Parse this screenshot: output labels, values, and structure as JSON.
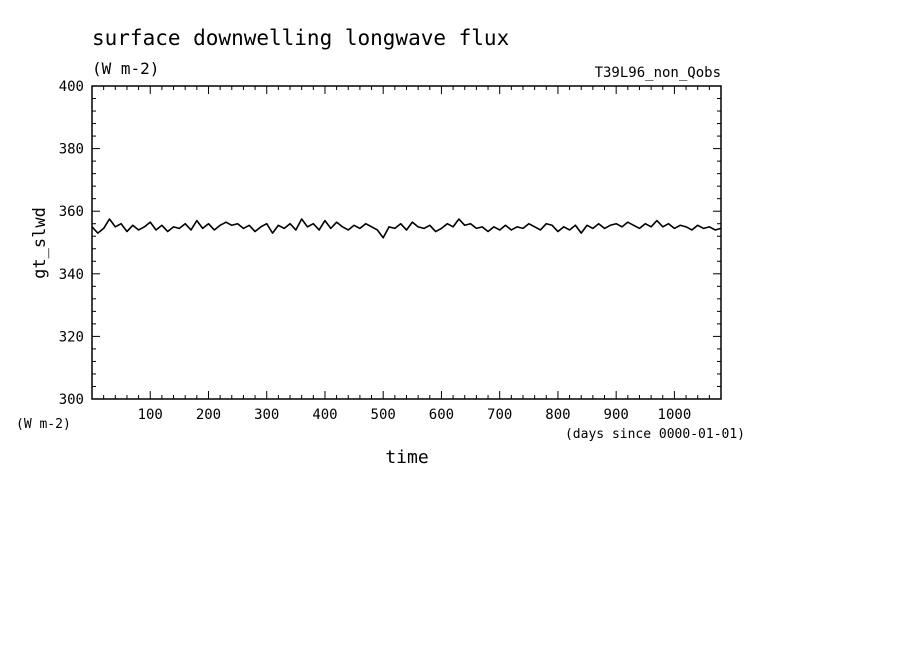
{
  "chart_data": {
    "type": "line",
    "title": "surface downwelling longwave flux",
    "subtitle": "(W m-2)",
    "run_label": "T39L96_non_Qobs",
    "xlabel": "time",
    "x_unit_label": "(days since 0000-01-01)",
    "ylabel": "gt_slwd",
    "y_unit_label": "(W m-2)",
    "xlim": [
      0,
      1080
    ],
    "ylim": [
      300,
      400
    ],
    "x_ticks": [
      100,
      200,
      300,
      400,
      500,
      600,
      700,
      800,
      900,
      1000
    ],
    "x_tick_labels": [
      "100",
      "200",
      "300",
      "400",
      "500",
      "600",
      "700",
      "800",
      "900",
      "1000"
    ],
    "y_ticks": [
      300,
      320,
      340,
      360,
      380,
      400
    ],
    "y_tick_labels": [
      "300",
      "320",
      "340",
      "360",
      "380",
      "400"
    ],
    "grid": false,
    "series": [
      {
        "color": "#000000",
        "x": [
          0,
          10,
          20,
          30,
          40,
          50,
          60,
          70,
          80,
          90,
          100,
          110,
          120,
          130,
          140,
          150,
          160,
          170,
          180,
          190,
          200,
          210,
          220,
          230,
          240,
          250,
          260,
          270,
          280,
          290,
          300,
          310,
          320,
          330,
          340,
          350,
          360,
          370,
          380,
          390,
          400,
          410,
          420,
          430,
          440,
          450,
          460,
          470,
          480,
          490,
          500,
          510,
          520,
          530,
          540,
          550,
          560,
          570,
          580,
          590,
          600,
          610,
          620,
          630,
          640,
          650,
          660,
          670,
          680,
          690,
          700,
          710,
          720,
          730,
          740,
          750,
          760,
          770,
          780,
          790,
          800,
          810,
          820,
          830,
          840,
          850,
          860,
          870,
          880,
          890,
          900,
          910,
          920,
          930,
          940,
          950,
          960,
          970,
          980,
          990,
          1000,
          1010,
          1020,
          1030,
          1040,
          1050,
          1060,
          1070,
          1080
        ],
        "y": [
          355,
          353,
          354.5,
          357.5,
          355,
          356,
          353.5,
          355.5,
          354,
          355,
          356.5,
          354,
          355.5,
          353.5,
          355,
          354.5,
          356,
          354,
          357,
          354.5,
          356,
          354,
          355.5,
          356.5,
          355.5,
          356,
          354.5,
          355.5,
          353.5,
          355,
          356,
          353,
          355.5,
          354.5,
          356,
          354,
          357.5,
          355,
          356,
          354,
          357,
          354.5,
          356.5,
          355,
          354,
          355.5,
          354.5,
          356,
          355,
          354,
          351.5,
          355,
          354.5,
          356,
          354,
          356.5,
          355,
          354.5,
          355.5,
          353.5,
          354.5,
          356,
          355,
          357.5,
          355.5,
          356,
          354.5,
          355,
          353.5,
          355,
          354,
          355.5,
          354,
          355,
          354.5,
          356,
          355,
          354,
          356,
          355.5,
          353.5,
          355,
          354,
          355.5,
          353,
          355.5,
          354.5,
          356,
          354.5,
          355.5,
          356,
          355,
          356.5,
          355.5,
          354.5,
          356,
          355,
          357,
          355,
          356,
          354.5,
          355.5,
          355,
          354,
          355.5,
          354.5,
          355,
          354,
          354.5
        ]
      }
    ]
  }
}
